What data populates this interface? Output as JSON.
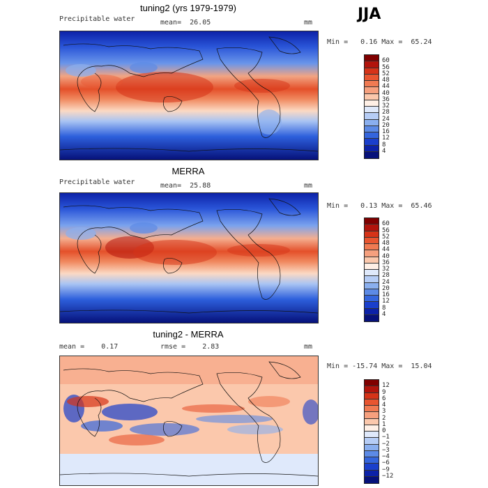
{
  "season": "JJA",
  "panels": [
    {
      "title": "tuning2 (yrs 1979-1979)",
      "variable": "Precipitable water",
      "mean_text": "mean=  26.05",
      "units": "mm",
      "minmax": "Min =   0.16 Max =  65.24",
      "type": "field"
    },
    {
      "title": "MERRA",
      "variable": "Precipitable water",
      "mean_text": "mean=  25.88",
      "units": "mm",
      "minmax": "Min =   0.13 Max =  65.46",
      "type": "field"
    },
    {
      "title": "tuning2 - MERRA",
      "mean_text": "mean =    0.17",
      "rmse_text": "rmse =    2.83",
      "units": "mm",
      "minmax": "Min = -15.74 Max =  15.04",
      "type": "diff"
    }
  ],
  "colorbar_field": {
    "labels": [
      "60",
      "56",
      "52",
      "48",
      "44",
      "40",
      "36",
      "32",
      "28",
      "24",
      "20",
      "16",
      "12",
      "8",
      "4"
    ],
    "colors": [
      "#800000",
      "#b2140c",
      "#d63318",
      "#e85530",
      "#f07a52",
      "#f6a07e",
      "#fbc8ac",
      "#fff0e6",
      "#dfe9fb",
      "#b6cdf6",
      "#8aafef",
      "#5c8ae6",
      "#3465dd",
      "#1a3fcc",
      "#0c22a8",
      "#06117a"
    ]
  },
  "colorbar_diff": {
    "labels": [
      "12",
      "9",
      "6",
      "4",
      "3",
      "2",
      "1",
      "0",
      "−1",
      "−2",
      "−3",
      "−4",
      "−6",
      "−9",
      "−12"
    ],
    "colors": [
      "#800000",
      "#b2140c",
      "#d63318",
      "#e85530",
      "#f07a52",
      "#f6a07e",
      "#fbc8ac",
      "#fff0e6",
      "#dfe9fb",
      "#b6cdf6",
      "#8aafef",
      "#5c8ae6",
      "#3465dd",
      "#1a3fcc",
      "#0c22a8",
      "#06117a"
    ]
  }
}
